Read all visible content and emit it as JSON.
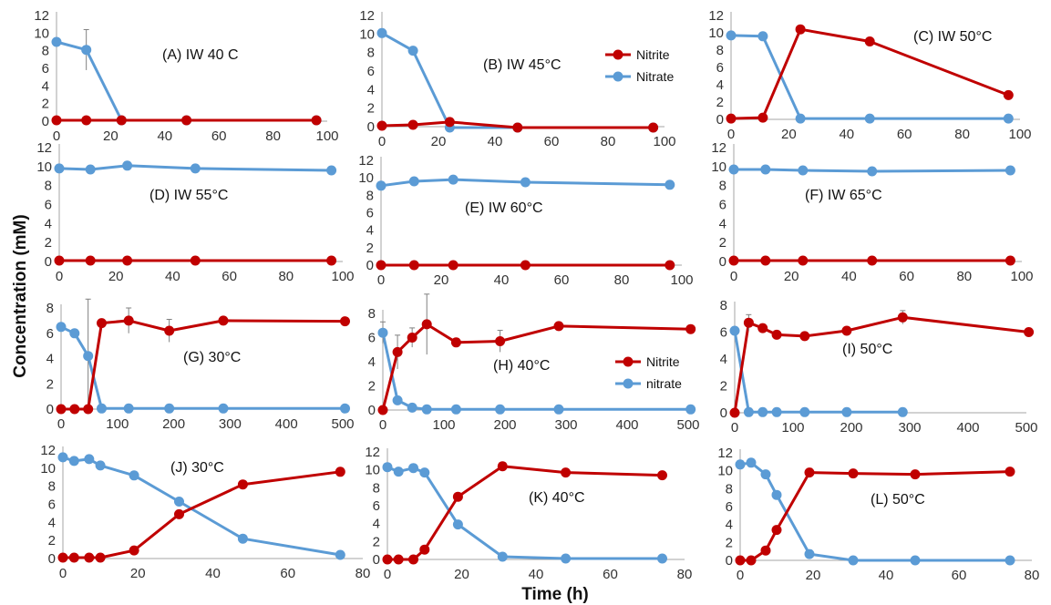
{
  "figure": {
    "ylabel": "Concentration (mM)",
    "xlabel": "Time (h)",
    "colors": {
      "nitrite": "#C00000",
      "nitrate": "#5B9BD5",
      "axis": "#A6A6A6",
      "error_bar": "#808080"
    }
  },
  "chart_data": [
    {
      "id": "A",
      "type": "line",
      "title": "(A) IW 40 C",
      "xlim": [
        0,
        100
      ],
      "ylim": [
        0,
        12
      ],
      "xticks": [
        0,
        20,
        40,
        60,
        80,
        100
      ],
      "yticks": [
        0,
        2,
        4,
        6,
        8,
        10,
        12
      ],
      "series": [
        {
          "key": "nitrite",
          "x": [
            0,
            11,
            24,
            48,
            96
          ],
          "y": [
            0.1,
            0.1,
            0.1,
            0.1,
            0.1
          ]
        },
        {
          "key": "nitrate",
          "x": [
            0,
            11,
            24,
            48,
            96
          ],
          "y": [
            9.0,
            8.1,
            0.1,
            0.1,
            0.1
          ],
          "err": [
            0,
            2.3,
            0,
            0,
            0
          ]
        }
      ]
    },
    {
      "id": "B",
      "type": "line",
      "title": "(B) IW 45°C",
      "xlim": [
        0,
        100
      ],
      "ylim": [
        0,
        12
      ],
      "xticks": [
        0,
        20,
        40,
        60,
        80,
        100
      ],
      "yticks": [
        0,
        2,
        4,
        6,
        8,
        10,
        12
      ],
      "legend": [
        "Nitrite",
        "Nitrate"
      ],
      "series": [
        {
          "key": "nitrite",
          "x": [
            0,
            11,
            24,
            48,
            96
          ],
          "y": [
            0.1,
            0.2,
            0.5,
            -0.1,
            -0.1
          ]
        },
        {
          "key": "nitrate",
          "x": [
            0,
            11,
            24,
            48,
            96
          ],
          "y": [
            10.1,
            8.2,
            -0.1,
            -0.1,
            -0.1
          ]
        }
      ]
    },
    {
      "id": "C",
      "type": "line",
      "title": "(C) IW 50°C",
      "xlim": [
        0,
        100
      ],
      "ylim": [
        0,
        12
      ],
      "xticks": [
        0,
        20,
        40,
        60,
        80,
        100
      ],
      "yticks": [
        0,
        2,
        4,
        6,
        8,
        10,
        12
      ],
      "series": [
        {
          "key": "nitrite",
          "x": [
            0,
            11,
            24,
            48,
            96
          ],
          "y": [
            0.1,
            0.2,
            10.4,
            9.0,
            2.8
          ]
        },
        {
          "key": "nitrate",
          "x": [
            0,
            11,
            24,
            48,
            96
          ],
          "y": [
            9.7,
            9.6,
            0.1,
            0.1,
            0.1
          ]
        }
      ]
    },
    {
      "id": "D",
      "type": "line",
      "title": "(D) IW 55°C",
      "xlim": [
        0,
        100
      ],
      "ylim": [
        0,
        12
      ],
      "xticks": [
        0,
        20,
        40,
        60,
        80,
        100
      ],
      "yticks": [
        0,
        2,
        4,
        6,
        8,
        10,
        12
      ],
      "series": [
        {
          "key": "nitrite",
          "x": [
            0,
            11,
            24,
            48,
            96
          ],
          "y": [
            0.1,
            0.1,
            0.1,
            0.1,
            0.1
          ]
        },
        {
          "key": "nitrate",
          "x": [
            0,
            11,
            24,
            48,
            96
          ],
          "y": [
            9.8,
            9.7,
            10.1,
            9.8,
            9.6
          ]
        }
      ]
    },
    {
      "id": "E",
      "type": "line",
      "title": "(E) IW 60°C",
      "xlim": [
        0,
        100
      ],
      "ylim": [
        0,
        12
      ],
      "xticks": [
        0,
        20,
        40,
        60,
        80,
        100
      ],
      "yticks": [
        0,
        2,
        4,
        6,
        8,
        10,
        12
      ],
      "series": [
        {
          "key": "nitrite",
          "x": [
            0,
            11,
            24,
            48,
            96
          ],
          "y": [
            0.0,
            0.0,
            0.0,
            0.0,
            0.0
          ]
        },
        {
          "key": "nitrate",
          "x": [
            0,
            11,
            24,
            48,
            96
          ],
          "y": [
            9.1,
            9.6,
            9.8,
            9.5,
            9.2
          ]
        }
      ]
    },
    {
      "id": "F",
      "type": "line",
      "title": "(F) IW 65°C",
      "xlim": [
        0,
        100
      ],
      "ylim": [
        0,
        12
      ],
      "xticks": [
        0,
        20,
        40,
        60,
        80,
        100
      ],
      "yticks": [
        0,
        2,
        4,
        6,
        8,
        10,
        12
      ],
      "series": [
        {
          "key": "nitrite",
          "x": [
            0,
            11,
            24,
            48,
            96
          ],
          "y": [
            0.1,
            0.1,
            0.1,
            0.1,
            0.1
          ]
        },
        {
          "key": "nitrate",
          "x": [
            0,
            11,
            24,
            48,
            96
          ],
          "y": [
            9.7,
            9.7,
            9.6,
            9.5,
            9.6
          ]
        }
      ]
    },
    {
      "id": "G",
      "type": "line",
      "title": "(G) 30°C",
      "xlim": [
        0,
        500
      ],
      "ylim": [
        0,
        8
      ],
      "xticks": [
        0,
        100,
        200,
        300,
        400,
        500
      ],
      "yticks": [
        0,
        2,
        4,
        6,
        8
      ],
      "series": [
        {
          "key": "nitrite",
          "x": [
            0,
            24,
            48,
            72,
            120,
            192,
            288,
            504
          ],
          "y": [
            0,
            0,
            0,
            6.8,
            7.0,
            6.2,
            7.0,
            6.95
          ],
          "err": [
            0,
            0,
            0,
            0,
            1.0,
            0.9,
            0,
            0
          ]
        },
        {
          "key": "nitrate",
          "x": [
            0,
            24,
            48,
            72,
            120,
            192,
            288,
            504
          ],
          "y": [
            6.5,
            6.0,
            4.2,
            0.05,
            0.05,
            0.05,
            0.05,
            0.05
          ],
          "err": [
            0,
            0,
            4.5,
            0,
            0,
            0,
            0,
            0
          ]
        }
      ]
    },
    {
      "id": "H",
      "type": "line",
      "title": "(H) 40°C",
      "xlim": [
        0,
        500
      ],
      "ylim": [
        0,
        8
      ],
      "xticks": [
        0,
        100,
        200,
        300,
        400,
        500
      ],
      "yticks": [
        0,
        2,
        4,
        6,
        8
      ],
      "legend": [
        "Nitrite",
        "nitrate"
      ],
      "series": [
        {
          "key": "nitrite",
          "x": [
            0,
            24,
            48,
            72,
            120,
            192,
            288,
            504
          ],
          "y": [
            0,
            4.8,
            6.0,
            7.1,
            5.6,
            5.7,
            6.95,
            6.7
          ],
          "err": [
            0,
            1.4,
            0.8,
            2.5,
            0,
            0.9,
            0,
            0
          ]
        },
        {
          "key": "nitrate",
          "x": [
            0,
            24,
            48,
            72,
            120,
            192,
            288,
            504
          ],
          "y": [
            6.4,
            0.8,
            0.2,
            0.05,
            0.05,
            0.05,
            0.05,
            0.05
          ],
          "err": [
            0.9,
            0,
            0,
            0,
            0,
            0,
            0,
            0
          ]
        }
      ]
    },
    {
      "id": "I",
      "type": "line",
      "title": "(I) 50°C",
      "xlim": [
        0,
        500
      ],
      "ylim": [
        0,
        8
      ],
      "xticks": [
        0,
        100,
        200,
        300,
        400,
        500
      ],
      "yticks": [
        0,
        2,
        4,
        6,
        8
      ],
      "series": [
        {
          "key": "nitrite",
          "x": [
            0,
            24,
            48,
            72,
            120,
            192,
            288,
            504
          ],
          "y": [
            0,
            6.7,
            6.3,
            5.8,
            5.7,
            6.1,
            7.1,
            6.0
          ],
          "err": [
            0,
            0.6,
            0,
            0,
            0,
            0,
            0.5,
            0
          ]
        },
        {
          "key": "nitrate",
          "x": [
            0,
            24,
            48,
            72,
            120,
            192,
            288
          ],
          "y": [
            6.1,
            0.05,
            0.05,
            0.05,
            0.05,
            0.05,
            0.05
          ]
        }
      ]
    },
    {
      "id": "J",
      "type": "line",
      "title": "(J) 30°C",
      "xlim": [
        0,
        80
      ],
      "ylim": [
        0,
        12
      ],
      "xticks": [
        0,
        20,
        40,
        60,
        80
      ],
      "yticks": [
        0,
        2,
        4,
        6,
        8,
        10,
        12
      ],
      "series": [
        {
          "key": "nitrite",
          "x": [
            0,
            3,
            7,
            10,
            19,
            31,
            48,
            74
          ],
          "y": [
            0.1,
            0.1,
            0.1,
            0.1,
            0.9,
            4.9,
            8.2,
            9.6
          ]
        },
        {
          "key": "nitrate",
          "x": [
            0,
            3,
            7,
            10,
            19,
            31,
            48,
            74
          ],
          "y": [
            11.2,
            10.8,
            11.0,
            10.3,
            9.2,
            6.3,
            2.2,
            0.4
          ]
        }
      ]
    },
    {
      "id": "K",
      "type": "line",
      "title": "(K) 40°C",
      "xlim": [
        0,
        80
      ],
      "ylim": [
        0,
        12
      ],
      "xticks": [
        0,
        20,
        40,
        60,
        80
      ],
      "yticks": [
        0,
        2,
        4,
        6,
        8,
        10,
        12
      ],
      "series": [
        {
          "key": "nitrite",
          "x": [
            0,
            3,
            7,
            10,
            19,
            31,
            48,
            74
          ],
          "y": [
            0.0,
            0.0,
            0.0,
            1.1,
            7.0,
            10.4,
            9.7,
            9.4
          ]
        },
        {
          "key": "nitrate",
          "x": [
            0,
            3,
            7,
            10,
            19,
            31,
            48,
            74
          ],
          "y": [
            10.3,
            9.8,
            10.2,
            9.7,
            3.9,
            0.3,
            0.1,
            0.1
          ]
        }
      ]
    },
    {
      "id": "L",
      "type": "line",
      "title": "(L) 50°C",
      "xlim": [
        0,
        80
      ],
      "ylim": [
        0,
        12
      ],
      "xticks": [
        0,
        20,
        40,
        60,
        80
      ],
      "yticks": [
        0,
        2,
        4,
        6,
        8,
        10,
        12
      ],
      "series": [
        {
          "key": "nitrite",
          "x": [
            0,
            3,
            7,
            10,
            19,
            31,
            48,
            74
          ],
          "y": [
            0.0,
            0.0,
            1.1,
            3.4,
            9.8,
            9.7,
            9.6,
            9.9
          ]
        },
        {
          "key": "nitrate",
          "x": [
            0,
            3,
            7,
            10,
            19,
            31,
            48,
            74
          ],
          "y": [
            10.7,
            10.9,
            9.6,
            7.3,
            0.7,
            0.0,
            0.0,
            0.0
          ]
        }
      ]
    }
  ]
}
